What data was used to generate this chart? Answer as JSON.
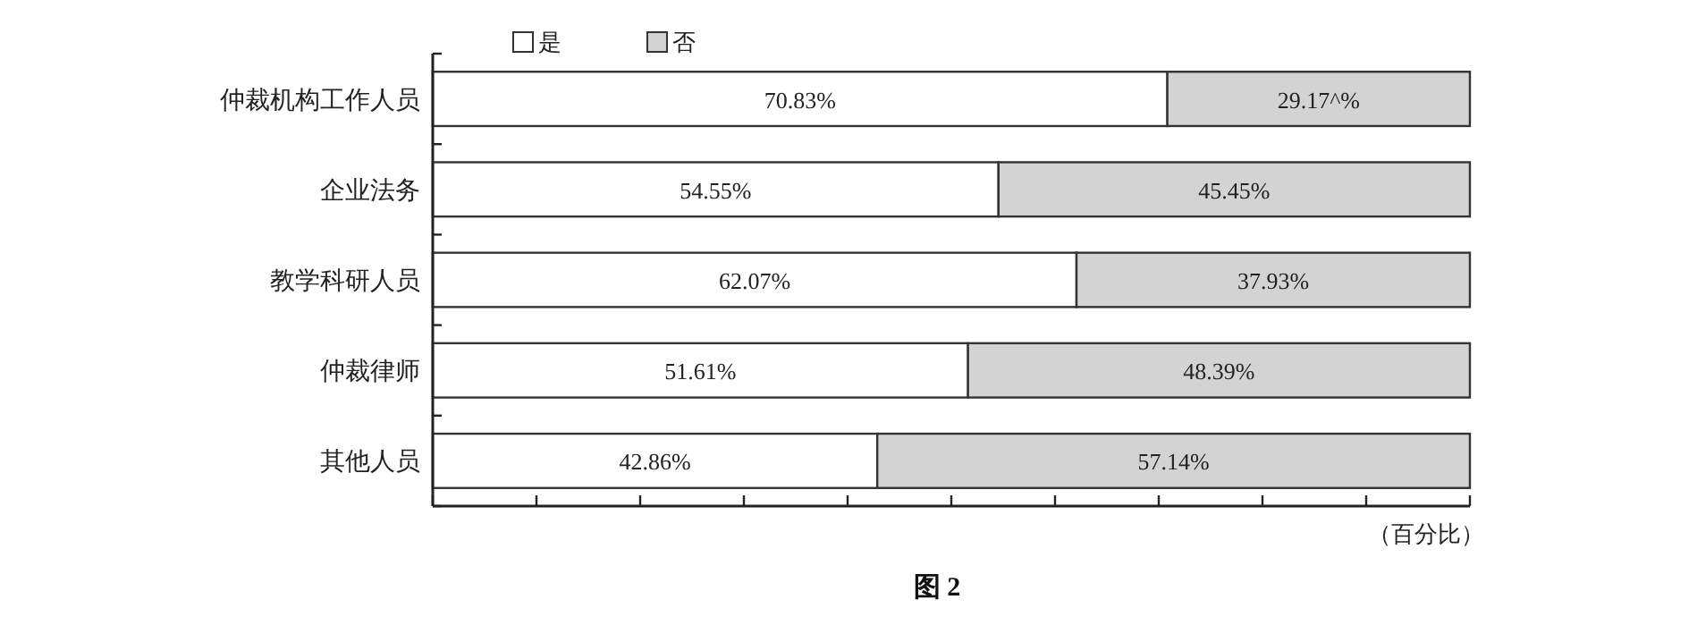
{
  "chart_data": {
    "type": "bar",
    "orientation": "horizontal",
    "stacked": true,
    "title": "图 2",
    "xlabel": "（百分比）",
    "categories": [
      "仲裁机构工作人员",
      "企业法务",
      "教学科研人员",
      "仲裁律师",
      "其他人员"
    ],
    "series": [
      {
        "name": "是",
        "color": "#ffffff",
        "values": [
          70.83,
          54.55,
          62.07,
          51.61,
          42.86
        ],
        "value_labels": [
          "70.83%",
          "54.55%",
          "62.07%",
          "51.61%",
          "42.86%"
        ]
      },
      {
        "name": "否",
        "color": "#d3d3d3",
        "values": [
          29.17,
          45.45,
          37.93,
          48.39,
          57.14
        ],
        "value_labels": [
          "29.17^%",
          "45.45%",
          "37.93%",
          "48.39%",
          "57.14%"
        ]
      }
    ],
    "xlim": [
      0,
      100
    ],
    "xticks": [
      {
        "value": 0,
        "label": null
      },
      {
        "value": 10,
        "label": null
      },
      {
        "value": 20,
        "label": null
      },
      {
        "value": 30,
        "label": null
      },
      {
        "value": 40,
        "label": null
      },
      {
        "value": 50,
        "label": null
      },
      {
        "value": 60,
        "label": null
      },
      {
        "value": 70,
        "label": null
      },
      {
        "value": 80,
        "label": null
      },
      {
        "value": 90,
        "label": null
      },
      {
        "value": 100,
        "label": null
      }
    ],
    "tick_labels": "y",
    "grid": false,
    "legend": "top left"
  }
}
